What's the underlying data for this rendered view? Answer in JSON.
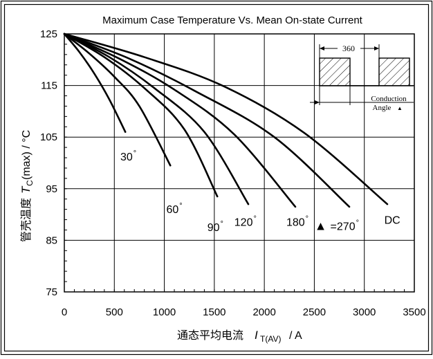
{
  "chart_data": {
    "type": "line",
    "title": "Maximum Case Temperature Vs. Mean On-state Current",
    "xlabel": "通态平均电流",
    "xlabel_symbol": "I",
    "xlabel_subscript": "T(AV)",
    "xlabel_unit": "/ A",
    "ylabel_cn": "管壳温度",
    "ylabel_symbol": "T",
    "ylabel_subscript": "C",
    "ylabel_unit": "(max) / °C",
    "xlim": [
      0,
      3500
    ],
    "ylim": [
      75,
      125
    ],
    "xticks": [
      "0",
      "500",
      "1000",
      "1500",
      "2000",
      "2500",
      "3000",
      "3500"
    ],
    "yticks": [
      "125",
      "115",
      "105",
      "95",
      "85",
      "75"
    ],
    "grid": true,
    "series": [
      {
        "name": "30°",
        "x": [
          0,
          150,
          300,
          450,
          610
        ],
        "y": [
          125,
          121.5,
          117.3,
          112.3,
          106
        ]
      },
      {
        "name": "60°",
        "x": [
          0,
          250,
          500,
          750,
          1060
        ],
        "y": [
          125,
          121.2,
          116.7,
          111,
          99.5
        ]
      },
      {
        "name": "90°",
        "x": [
          0,
          400,
          800,
          1200,
          1530
        ],
        "y": [
          125,
          120.5,
          114.5,
          106.5,
          93.5
        ]
      },
      {
        "name": "120°",
        "x": [
          0,
          450,
          900,
          1400,
          1840
        ],
        "y": [
          125,
          120.5,
          114.5,
          106,
          92
        ]
      },
      {
        "name": "180°",
        "x": [
          0,
          550,
          1100,
          1700,
          2310
        ],
        "y": [
          125,
          120.2,
          114.2,
          105.5,
          91.5
        ]
      },
      {
        "name": "=270°",
        "x": [
          0,
          650,
          1300,
          2100,
          2850
        ],
        "y": [
          125,
          120.2,
          114,
          105,
          91.5
        ]
      },
      {
        "name": "DC",
        "x": [
          0,
          800,
          1600,
          2400,
          3230
        ],
        "y": [
          125,
          120.5,
          114.8,
          105.8,
          92
        ]
      }
    ],
    "series_labels": [
      {
        "text": "30",
        "deg": "°",
        "x": 560,
        "y": 100.5
      },
      {
        "text": "60",
        "deg": "°",
        "x": 1020,
        "y": 90.3
      },
      {
        "text": "90",
        "deg": "°",
        "x": 1430,
        "y": 86.8
      },
      {
        "text": "120",
        "deg": "°",
        "x": 1700,
        "y": 87.8
      },
      {
        "text": "180",
        "deg": "°",
        "x": 2220,
        "y": 87.8
      },
      {
        "text": "=270",
        "deg": "°",
        "x": 2660,
        "y": 87.0,
        "marker": "▲"
      },
      {
        "text": "DC",
        "deg": "",
        "x": 3200,
        "y": 88.2
      }
    ],
    "inset": {
      "period_label": "360",
      "caption_line1": "Conduction",
      "caption_line2": "Angle",
      "caption_marker": "▲"
    }
  },
  "colors": {
    "line": "#000000",
    "background": "#ffffff"
  }
}
